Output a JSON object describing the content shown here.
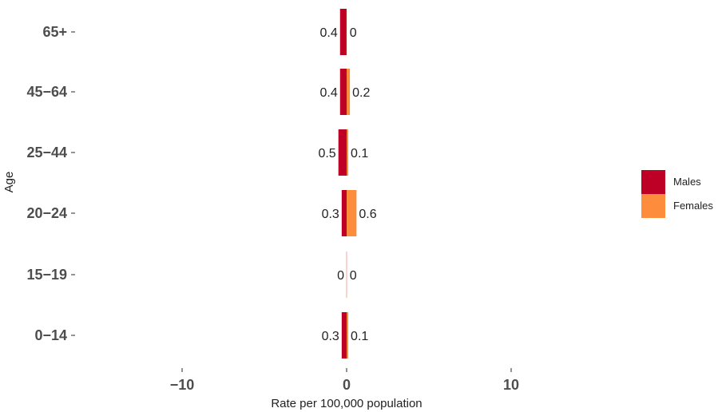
{
  "chart_data": {
    "type": "bar",
    "orientation": "horizontal",
    "layout": "diverging",
    "categories": [
      "0–14",
      "15–19",
      "20–24",
      "25–44",
      "45–64",
      "65+"
    ],
    "category_labels": [
      "0−14",
      "15−19",
      "20−24",
      "25−44",
      "45−64",
      "65+"
    ],
    "series": [
      {
        "name": "Males",
        "values": [
          0.3,
          0,
          0.3,
          0.5,
          0.4,
          0.4
        ],
        "labels": [
          "0.3",
          "0",
          "0.3",
          "0.5",
          "0.4",
          "0.4"
        ],
        "color": "#BE0026",
        "side": "left"
      },
      {
        "name": "Females",
        "values": [
          0.1,
          0,
          0.6,
          0.1,
          0.2,
          0
        ],
        "labels": [
          "0.1",
          "0",
          "0.6",
          "0.1",
          "0.2",
          "0"
        ],
        "color": "#FD8D3C",
        "side": "right"
      }
    ],
    "xticks": [
      -10,
      0,
      10
    ],
    "xtick_labels": [
      "−10",
      "0",
      "10"
    ],
    "xlim": [
      -20,
      20
    ],
    "xlabel": "Rate per 100,000 population",
    "ylabel": "Age",
    "grid": false,
    "legend": "right"
  }
}
